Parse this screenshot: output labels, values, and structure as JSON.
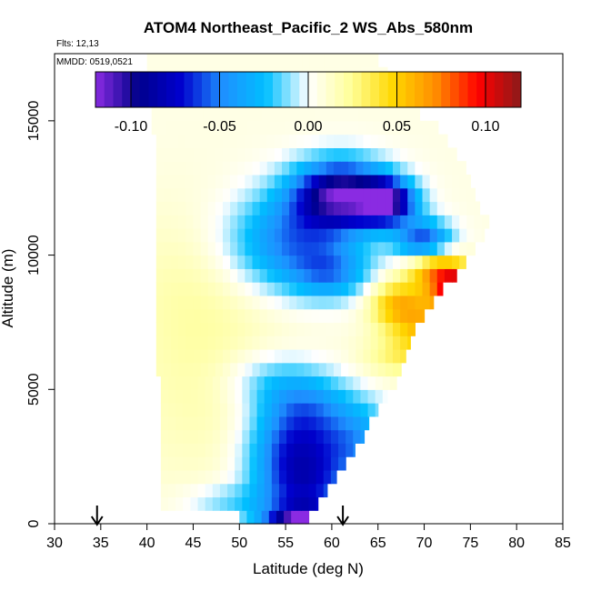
{
  "chart_data": {
    "type": "heatmap",
    "title": "ATOM4 Northeast_Pacific_2 WS_Abs_580nm",
    "subtitle_lines": [
      "Flts: 12,13",
      "MMDD: 0519,0521"
    ],
    "xlabel": "Latitude (deg N)",
    "ylabel": "Altitude (m)",
    "xlim": [
      30,
      85
    ],
    "ylim": [
      0,
      17500
    ],
    "x_ticks": [
      30,
      35,
      40,
      45,
      50,
      55,
      60,
      65,
      70,
      75,
      80,
      85
    ],
    "y_ticks": [
      0,
      5000,
      10000,
      15000
    ],
    "colorbar": {
      "range": [
        -0.12,
        0.12
      ],
      "ticks": [
        -0.1,
        -0.05,
        0.0,
        0.05,
        0.1
      ],
      "tick_labels": [
        "-0.10",
        "-0.05",
        "0.00",
        "0.05",
        "0.10"
      ],
      "colors": [
        "#8a2be2",
        "#00008b",
        "#0000cd",
        "#1e90ff",
        "#00bfff",
        "#ffffff",
        "#ffff99",
        "#ffd700",
        "#ff8c00",
        "#ff0000",
        "#8b1a1a"
      ]
    },
    "arrows_x": [
      34.6,
      61.2
    ],
    "grid": {
      "lat_start": 40.5,
      "lat_step": 0.8,
      "alt_start": 0,
      "alt_step": 500
    },
    "extent": [
      [
        50.0,
        57.5
      ],
      [
        41.5,
        58.5
      ],
      [
        41.5,
        59.5
      ],
      [
        41.5,
        60.5
      ],
      [
        41.5,
        61.5
      ],
      [
        41.5,
        62.5
      ],
      [
        41.5,
        63.5
      ],
      [
        41.5,
        64.0
      ],
      [
        41.5,
        65.0
      ],
      [
        41.5,
        66.0
      ],
      [
        41.5,
        67.0
      ],
      [
        41.0,
        67.5
      ],
      [
        41.0,
        68.0
      ],
      [
        41.0,
        68.5
      ],
      [
        41.0,
        69.0
      ],
      [
        41.0,
        70.0
      ],
      [
        41.0,
        71.0
      ],
      [
        41.0,
        72.0
      ],
      [
        41.0,
        73.5
      ],
      [
        41.0,
        74.5
      ],
      [
        41.0,
        75.5
      ],
      [
        41.0,
        76.5
      ],
      [
        41.0,
        77.0
      ],
      [
        41.0,
        76.0
      ],
      [
        41.0,
        75.5
      ],
      [
        41.0,
        75.0
      ],
      [
        41.0,
        74.5
      ],
      [
        41.0,
        73.5
      ],
      [
        41.0,
        72.5
      ],
      [
        40.5,
        71.5
      ],
      [
        40.5,
        69.5
      ],
      [
        40.5,
        68.0
      ],
      [
        40.0,
        66.5
      ],
      [
        40.0,
        66.0
      ],
      [
        40.0,
        65.0
      ]
    ],
    "features": [
      {
        "lat": 57,
        "alt": 0,
        "value": -0.11,
        "sl": 4,
        "sa": 600
      },
      {
        "lat": 57,
        "alt": 1200,
        "value": -0.065,
        "sl": 5,
        "sa": 1400
      },
      {
        "lat": 56,
        "alt": 2800,
        "value": -0.06,
        "sl": 5,
        "sa": 1400
      },
      {
        "lat": 57,
        "alt": 4400,
        "value": -0.045,
        "sl": 5,
        "sa": 1300
      },
      {
        "lat": 63,
        "alt": 3000,
        "value": -0.04,
        "sl": 4,
        "sa": 1500
      },
      {
        "lat": 53,
        "alt": 5400,
        "value": -0.02,
        "sl": 5,
        "sa": 1100
      },
      {
        "lat": 49,
        "alt": 800,
        "value": -0.02,
        "sl": 5,
        "sa": 700
      },
      {
        "lat": 61,
        "alt": 12300,
        "value": -0.11,
        "sl": 5,
        "sa": 1200
      },
      {
        "lat": 66,
        "alt": 12000,
        "value": -0.1,
        "sl": 3,
        "sa": 800
      },
      {
        "lat": 56,
        "alt": 10500,
        "value": -0.06,
        "sl": 7,
        "sa": 1800
      },
      {
        "lat": 60,
        "alt": 9300,
        "value": -0.035,
        "sl": 4,
        "sa": 900
      },
      {
        "lat": 70,
        "alt": 10500,
        "value": -0.07,
        "sl": 3,
        "sa": 800
      },
      {
        "lat": 74,
        "alt": 8800,
        "value": 0.11,
        "sl": 3,
        "sa": 700
      },
      {
        "lat": 71,
        "alt": 9600,
        "value": 0.06,
        "sl": 3,
        "sa": 700
      },
      {
        "lat": 71,
        "alt": 7300,
        "value": 0.05,
        "sl": 4,
        "sa": 1200
      },
      {
        "lat": 67,
        "alt": 8200,
        "value": 0.045,
        "sl": 3,
        "sa": 900
      },
      {
        "lat": 67,
        "alt": 6200,
        "value": 0.02,
        "sl": 4,
        "sa": 800
      },
      {
        "lat": 45,
        "alt": 9000,
        "value": 0.01,
        "sl": 8,
        "sa": 3000
      },
      {
        "lat": 47,
        "alt": 5000,
        "value": 0.012,
        "sl": 10,
        "sa": 4000
      }
    ]
  }
}
